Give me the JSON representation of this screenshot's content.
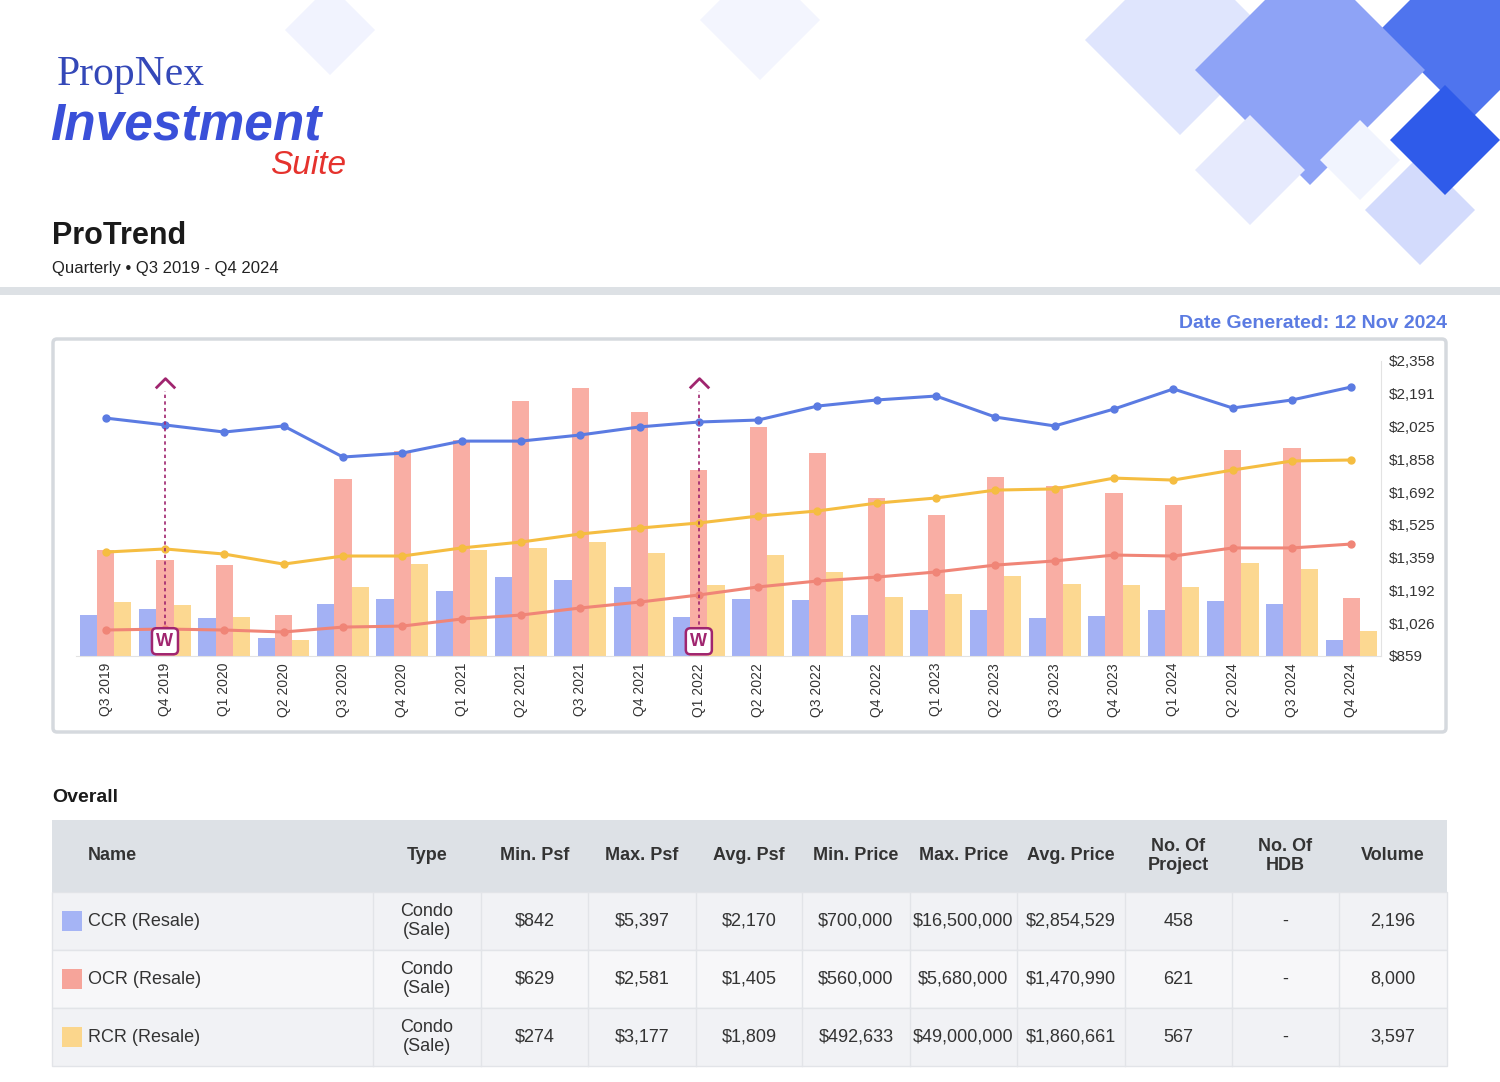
{
  "header": {
    "logo": [
      "PropNex",
      "Investment",
      "Suite"
    ],
    "title": "ProTrend",
    "subtitle": "Quarterly • Q3 2019 - Q4 2024",
    "date": "Date Generated: 12 Nov 2024"
  },
  "chart_data": {
    "type": "bar",
    "categories": [
      "Q3 2019",
      "Q4 2019",
      "Q1 2020",
      "Q2 2020",
      "Q3 2020",
      "Q4 2020",
      "Q1 2021",
      "Q2 2021",
      "Q3 2021",
      "Q4 2021",
      "Q1 2022",
      "Q2 2022",
      "Q3 2022",
      "Q4 2022",
      "Q1 2023",
      "Q2 2023",
      "Q3 2023",
      "Q4 2023",
      "Q1 2024",
      "Q2 2024",
      "Q3 2024",
      "Q4 2024"
    ],
    "series": [
      {
        "type": "bar",
        "color": "#a3b1f4",
        "values": [
          1067,
          1098,
          1052,
          950,
          1123,
          1149,
          1189,
          1260,
          1245,
          1210,
          1057,
          1149,
          1144,
          1067,
          1093,
          1093,
          1052,
          1062,
          1093,
          1138,
          1123,
          940
        ]
      },
      {
        "type": "bar",
        "color": "#f9aea4",
        "values": [
          1398,
          1347,
          1321,
          1067,
          1758,
          1901,
          1956,
          2155,
          2221,
          2099,
          1804,
          2023,
          1890,
          1662,
          1575,
          1769,
          1723,
          1687,
          1626,
          1906,
          1916,
          1154
        ]
      },
      {
        "type": "bar",
        "color": "#fcd891",
        "values": [
          1133,
          1118,
          1057,
          940,
          1210,
          1326,
          1398,
          1408,
          1438,
          1382,
          1220,
          1372,
          1286,
          1159,
          1174,
          1265,
          1225,
          1220,
          1210,
          1332,
          1301,
          986
        ]
      },
      {
        "type": "line",
        "color": "#5b7be2",
        "marker": "o",
        "line_style": "solid",
        "values": [
          2068,
          2033,
          1997,
          2028,
          1870,
          1890,
          1951,
          1951,
          1982,
          2023,
          2048,
          2058,
          2129,
          2160,
          2180,
          2073,
          2028,
          2114,
          2216,
          2119,
          2160,
          2226
        ]
      },
      {
        "type": "line",
        "color": "#f08577",
        "marker": "o",
        "line_style": "solid",
        "values": [
          991,
          996,
          991,
          981,
          1006,
          1011,
          1047,
          1067,
          1103,
          1133,
          1169,
          1210,
          1240,
          1260,
          1286,
          1321,
          1342,
          1372,
          1367,
          1408,
          1408,
          1428
        ]
      },
      {
        "type": "line",
        "color": "#f5bd41",
        "marker": "o",
        "line_style": "solid",
        "values": [
          1387,
          1403,
          1377,
          1326,
          1367,
          1367,
          1408,
          1438,
          1479,
          1509,
          1535,
          1570,
          1596,
          1636,
          1662,
          1702,
          1708,
          1763,
          1753,
          1804,
          1850,
          1855
        ]
      }
    ],
    "ylim": [
      859,
      2358
    ],
    "yticks": [
      {
        "value": 859,
        "label": "$859"
      },
      {
        "value": 1026,
        "label": "$1,026"
      },
      {
        "value": 1192,
        "label": "$1,192"
      },
      {
        "value": 1359,
        "label": "$1,359"
      },
      {
        "value": 1525,
        "label": "$1,525"
      },
      {
        "value": 1692,
        "label": "$1,692"
      },
      {
        "value": 1858,
        "label": "$1,858"
      },
      {
        "value": 2025,
        "label": "$2,025"
      },
      {
        "value": 2191,
        "label": "$2,191"
      },
      {
        "value": 2358,
        "label": "$2,358"
      }
    ],
    "grid": false,
    "annotations": [
      {
        "category": "Q4 2019",
        "text": "W"
      },
      {
        "category": "Q1 2022",
        "text": "W"
      }
    ]
  },
  "table": {
    "title": "Overall",
    "columns": [
      "Name",
      "Type",
      "Min. Psf",
      "Max. Psf",
      "Avg. Psf",
      "Min. Price",
      "Max. Price",
      "Avg. Price",
      "No. Of\nProject",
      "No. Of\nHDB",
      "Volume"
    ],
    "rows": [
      {
        "name": "CCR (Resale)",
        "color": "#a5b4f5",
        "cells": [
          "Condo\n(Sale)",
          "$842",
          "$5,397",
          "$2,170",
          "$700,000",
          "$16,500,000",
          "$2,854,529",
          "458",
          "-",
          "2,196"
        ]
      },
      {
        "name": "OCR (Resale)",
        "color": "#f6a49a",
        "cells": [
          "Condo\n(Sale)",
          "$629",
          "$2,581",
          "$1,405",
          "$560,000",
          "$5,680,000",
          "$1,470,990",
          "621",
          "-",
          "8,000"
        ]
      },
      {
        "name": "RCR (Resale)",
        "color": "#fbd68c",
        "cells": [
          "Condo\n(Sale)",
          "$274",
          "$3,177",
          "$1,809",
          "$492,633",
          "$49,000,000",
          "$1,860,661",
          "567",
          "-",
          "3,597"
        ]
      }
    ]
  }
}
